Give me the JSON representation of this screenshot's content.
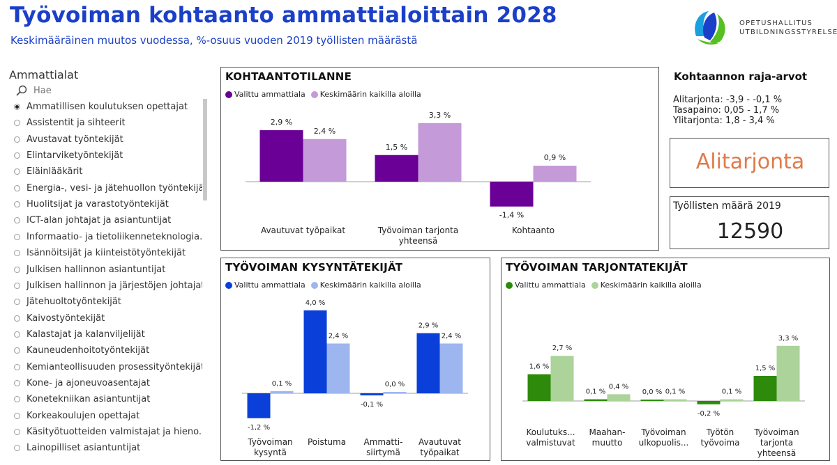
{
  "header": {
    "title": "Työvoiman kohtaanto ammattialoittain 2028",
    "subtitle": "Keskimääräinen muutos vuodessa, %-osuus vuoden 2019 työllisten määrästä"
  },
  "logo": {
    "line1": "OPETUSHALLITUS",
    "line2": "UTBILDNINGSSTYRELSEN"
  },
  "slicer": {
    "title": "Ammattialat",
    "search_placeholder": "Hae",
    "items": [
      {
        "label": "Ammatillisen koulutuksen opettajat",
        "selected": true
      },
      {
        "label": "Assistentit ja sihteerit",
        "selected": false
      },
      {
        "label": "Avustavat työntekijät",
        "selected": false
      },
      {
        "label": "Elintarviketyöntekijät",
        "selected": false
      },
      {
        "label": "Eläinlääkärit",
        "selected": false
      },
      {
        "label": "Energia-, vesi- ja jätehuollon työntekijät",
        "selected": false
      },
      {
        "label": "Huolitsijat ja varastotyöntekijät",
        "selected": false
      },
      {
        "label": "ICT-alan johtajat ja asiantuntijat",
        "selected": false
      },
      {
        "label": "Informaatio- ja tietoliikenneteknologia...",
        "selected": false
      },
      {
        "label": "Isännöitsijät ja kiinteistötyöntekijät",
        "selected": false
      },
      {
        "label": "Julkisen hallinnon asiantuntijat",
        "selected": false
      },
      {
        "label": "Julkisen hallinnon ja järjestöjen johtajat",
        "selected": false
      },
      {
        "label": "Jätehuoltotyöntekijät",
        "selected": false
      },
      {
        "label": "Kaivostyöntekijät",
        "selected": false
      },
      {
        "label": "Kalastajat ja kalanviljelijät",
        "selected": false
      },
      {
        "label": "Kauneudenhoitotyöntekijät",
        "selected": false
      },
      {
        "label": "Kemianteollisuuden prosessityöntekijät",
        "selected": false
      },
      {
        "label": "Kone- ja ajoneuvoasentajat",
        "selected": false
      },
      {
        "label": "Konetekniikan asiantuntijat",
        "selected": false
      },
      {
        "label": "Korkeakoulujen opettajat",
        "selected": false
      },
      {
        "label": "Käsityötuotteiden valmistajat ja hieno...",
        "selected": false
      },
      {
        "label": "Lainopilliset asiantuntijat",
        "selected": false
      }
    ]
  },
  "thresholds": {
    "title": "Kohtaannon raja-arvot",
    "lines": [
      "Alitarjonta: -3,9 - -0,1 %",
      "Tasapaino: 0,05 - 1,7 %",
      "Ylitarjonta: 1,8 - 3,4 %"
    ]
  },
  "status": {
    "value": "Alitarjonta",
    "color": "#e07a4a"
  },
  "workers": {
    "label": "Työllisten määrä 2019",
    "value": "12590"
  },
  "chart_data": [
    {
      "id": "kohtaanto",
      "type": "bar",
      "title": "KOHTAANTOTILANNE",
      "categories": [
        [
          "Avautuvat työpaikat"
        ],
        [
          "Työvoiman tarjonta",
          "yhteensä"
        ],
        [
          "Kohtaanto"
        ]
      ],
      "series": [
        {
          "name": "Valittu ammattiala",
          "color": "#6a0096",
          "values": [
            2.9,
            1.5,
            -1.4
          ],
          "labels": [
            "2,9 %",
            "1,5 %",
            "-1,4 %"
          ]
        },
        {
          "name": "Keskimäärin kaikilla aloilla",
          "color": "#c49ad8",
          "values": [
            2.4,
            3.3,
            0.9
          ],
          "labels": [
            "2,4 %",
            "3,3 %",
            "0,9 %"
          ]
        }
      ]
    },
    {
      "id": "kysynta",
      "type": "bar",
      "title": "TYÖVOIMAN KYSYNTÄTEKIJÄT",
      "categories": [
        [
          "Työvoiman",
          "kysyntä"
        ],
        [
          "Poistuma"
        ],
        [
          "Ammatti-",
          "siirtymä"
        ],
        [
          "Avautuvat",
          "työpaikat"
        ]
      ],
      "series": [
        {
          "name": "Valittu ammattiala",
          "color": "#0a3fd9",
          "values": [
            -1.2,
            4.0,
            -0.1,
            2.9
          ],
          "labels": [
            "-1,2 %",
            "4,0 %",
            "-0,1 %",
            "2,9 %"
          ]
        },
        {
          "name": "Keskimäärin kaikilla aloilla",
          "color": "#9db6f0",
          "values": [
            0.1,
            2.4,
            0.0,
            2.4
          ],
          "labels": [
            "0,1 %",
            "2,4 %",
            "0,0 %",
            "2,4 %"
          ]
        }
      ]
    },
    {
      "id": "tarjonta",
      "type": "bar",
      "title": "TYÖVOIMAN TARJONTATEKIJÄT",
      "categories": [
        [
          "Koulutuks...",
          "valmistuvat"
        ],
        [
          "Maahan-",
          "muutto"
        ],
        [
          "Työvoiman",
          "ulkopuolis..."
        ],
        [
          "Työtön",
          "työvoima"
        ],
        [
          "Työvoiman",
          "tarjonta",
          "yhteensä"
        ]
      ],
      "series": [
        {
          "name": "Valittu ammattiala",
          "color": "#2e8a0a",
          "values": [
            1.6,
            0.1,
            0.0,
            -0.2,
            1.5
          ],
          "labels": [
            "1,6 %",
            "0,1 %",
            "0,0 %",
            "-0,2 %",
            "1,5 %"
          ]
        },
        {
          "name": "Keskimäärin kaikilla aloilla",
          "color": "#abd39a",
          "values": [
            2.7,
            0.4,
            0.1,
            0.1,
            3.3
          ],
          "labels": [
            "2,7 %",
            "0,4 %",
            "0,1 %",
            "0,1 %",
            "3,3 %"
          ]
        }
      ]
    }
  ]
}
